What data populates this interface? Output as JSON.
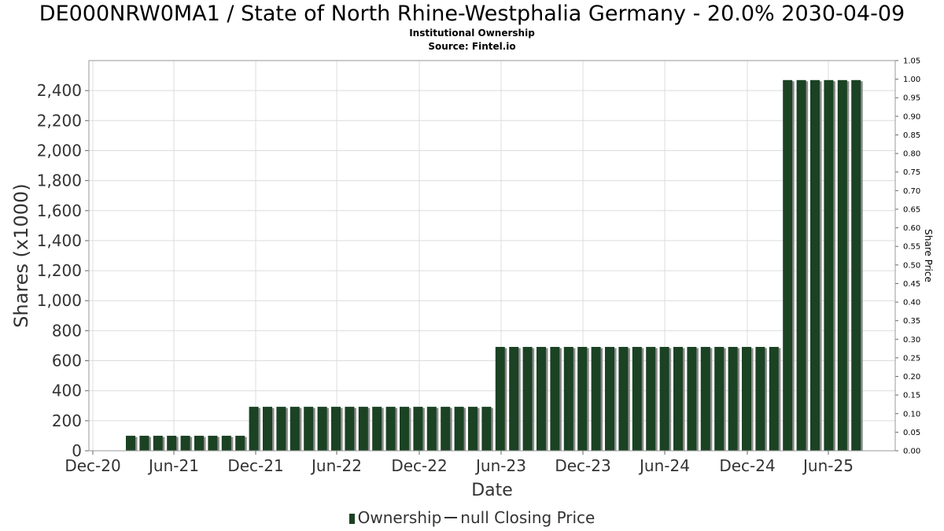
{
  "title": "DE000NRW0MA1 / State of North Rhine-Westphalia Germany - 20.0% 2030-04-09",
  "subtitle": "Institutional Ownership",
  "source": "Source: Fintel.io",
  "legend": {
    "ownership_label": "Ownership",
    "price_label": "null Closing Price"
  },
  "colors": {
    "bar": "#1a4223",
    "bar_shadow": "#8a8a8a",
    "grid": "#dcdcdc",
    "frame": "#999999"
  },
  "chart_data": {
    "type": "bar",
    "xlabel": "Date",
    "ylabel": "Shares (x1000)",
    "y2label": "Share Price",
    "ylim": [
      0,
      2600
    ],
    "y2lim": [
      0,
      1.05
    ],
    "x_ticks": [
      "Dec-20",
      "Jun-21",
      "Dec-21",
      "Jun-22",
      "Dec-22",
      "Jun-23",
      "Dec-23",
      "Jun-24",
      "Dec-24",
      "Jun-25"
    ],
    "y_ticks": [
      "0",
      "200",
      "400",
      "600",
      "800",
      "1,000",
      "1,200",
      "1,400",
      "1,600",
      "1,800",
      "2,000",
      "2,200",
      "2,400"
    ],
    "y2_ticks": [
      "0.00",
      "0.05",
      "0.10",
      "0.15",
      "0.20",
      "0.25",
      "0.30",
      "0.35",
      "0.40",
      "0.45",
      "0.50",
      "0.55",
      "0.60",
      "0.65",
      "0.70",
      "0.75",
      "0.80",
      "0.85",
      "0.90",
      "0.95",
      "1.00",
      "1.05"
    ],
    "grid": true,
    "legend_position": "bottom",
    "series": [
      {
        "name": "Ownership",
        "values": [
          100,
          100,
          100,
          100,
          100,
          100,
          100,
          100,
          100,
          293,
          293,
          293,
          293,
          293,
          293,
          293,
          293,
          293,
          293,
          293,
          293,
          293,
          293,
          293,
          293,
          293,
          293,
          692,
          692,
          692,
          692,
          692,
          692,
          692,
          692,
          692,
          692,
          692,
          692,
          692,
          692,
          692,
          692,
          692,
          692,
          692,
          692,
          692,
          2470,
          2470,
          2470,
          2470,
          2470,
          2470
        ]
      }
    ]
  }
}
